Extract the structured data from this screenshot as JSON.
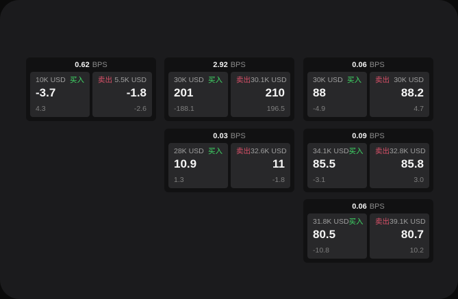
{
  "page": {
    "bps_suffix": "BPS",
    "buy_label": "买入",
    "sell_label": "卖出",
    "colors": {
      "outer_background": "#0b0b0b",
      "page_background": "#1b1b1d",
      "card_background": "#111112",
      "panel_background": "#28282a",
      "buy_green": "#3fd966",
      "sell_red": "#d85068",
      "primary_text": "#f5f5f5",
      "secondary_text": "#9e9e9e",
      "dim_text": "#7f7f7f"
    }
  },
  "cards": [
    {
      "bps": "0.62",
      "buy": {
        "amount": "10K USD",
        "value": "-3.7",
        "delta": "4.3"
      },
      "sell": {
        "amount": "5.5K USD",
        "value": "-1.8",
        "delta": "-2.6"
      }
    },
    {
      "bps": "2.92",
      "buy": {
        "amount": "30K USD",
        "value": "201",
        "delta": "-188.1"
      },
      "sell": {
        "amount": "30.1K USD",
        "value": "210",
        "delta": "196.5"
      }
    },
    {
      "bps": "0.06",
      "buy": {
        "amount": "30K USD",
        "value": "88",
        "delta": "-4.9"
      },
      "sell": {
        "amount": "30K USD",
        "value": "88.2",
        "delta": "4.7"
      }
    },
    {
      "bps": "0.03",
      "buy": {
        "amount": "28K USD",
        "value": "10.9",
        "delta": "1.3"
      },
      "sell": {
        "amount": "32.6K USD",
        "value": "11",
        "delta": "-1.8"
      }
    },
    {
      "bps": "0.09",
      "buy": {
        "amount": "34.1K USD",
        "value": "85.5",
        "delta": "-3.1"
      },
      "sell": {
        "amount": "32.8K USD",
        "value": "85.8",
        "delta": "3.0"
      }
    },
    {
      "bps": "0.06",
      "buy": {
        "amount": "31.8K USD",
        "value": "80.5",
        "delta": "-10.8"
      },
      "sell": {
        "amount": "39.1K USD",
        "value": "80.7",
        "delta": "10.2"
      }
    }
  ]
}
